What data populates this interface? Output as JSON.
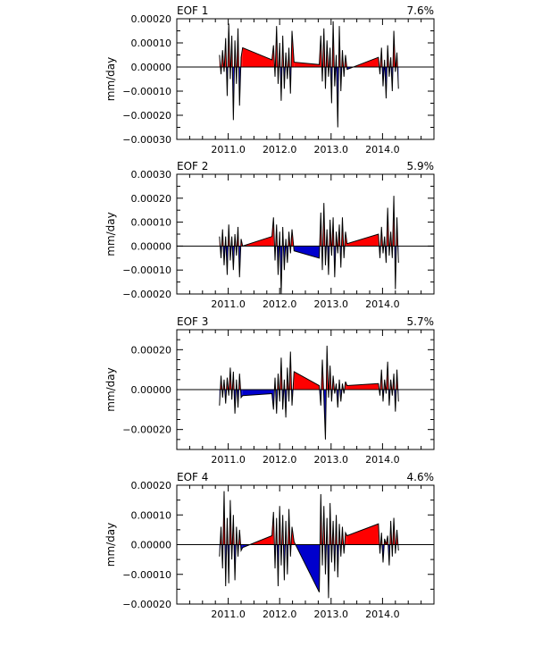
{
  "colors": {
    "positive": "#ff0000",
    "negative": "#0000cc",
    "line": "#000000"
  },
  "chart_data": [
    {
      "type": "area",
      "title_left": "EOF 1",
      "title_right": "7.6%",
      "ylabel": "mm/day",
      "xlim": [
        2010.0,
        2015.0
      ],
      "ylim": [
        -0.0003,
        0.0002
      ],
      "yticks": [
        -0.0003,
        -0.0002,
        -0.0001,
        0.0,
        0.0001,
        0.0002
      ],
      "ytick_labels": [
        "−0.00030",
        "−0.00020",
        "−0.00010",
        "0.00000",
        "0.00010",
        "0.00020"
      ],
      "xticks": [
        2011.0,
        2012.0,
        2013.0,
        2014.0
      ],
      "xtick_labels": [
        "2011.0",
        "2012.0",
        "2013.0",
        "2014.0"
      ],
      "x": [
        2010.83,
        2010.86,
        2010.89,
        2010.92,
        2010.95,
        2010.98,
        2011.01,
        2011.04,
        2011.07,
        2011.1,
        2011.13,
        2011.16,
        2011.19,
        2011.22,
        2011.25,
        2011.28,
        2011.85,
        2011.88,
        2011.91,
        2011.94,
        2011.97,
        2012.0,
        2012.03,
        2012.06,
        2012.09,
        2012.12,
        2012.15,
        2012.18,
        2012.21,
        2012.24,
        2012.28,
        2012.77,
        2012.8,
        2012.83,
        2012.86,
        2012.89,
        2012.92,
        2012.95,
        2012.98,
        2013.01,
        2013.04,
        2013.07,
        2013.1,
        2013.13,
        2013.16,
        2013.19,
        2013.22,
        2013.25,
        2013.28,
        2013.31,
        2013.92,
        2013.95,
        2013.98,
        2014.01,
        2014.04,
        2014.07,
        2014.1,
        2014.13,
        2014.16,
        2014.19,
        2014.22,
        2014.25,
        2014.28,
        2014.31
      ],
      "y": [
        5e-05,
        -3e-05,
        7e-05,
        -2e-05,
        0.00012,
        -0.00012,
        0.00018,
        -5e-05,
        0.00013,
        -0.00022,
        0.00011,
        -7e-05,
        0.00016,
        -0.00016,
        4e-05,
        8e-05,
        3e-05,
        9e-05,
        -4e-05,
        0.00017,
        -7e-05,
        0.0001,
        -0.00014,
        0.00013,
        -9e-05,
        6e-05,
        -5e-05,
        8e-05,
        -0.00011,
        0.00015,
        2e-05,
        1e-05,
        0.00013,
        -6e-05,
        0.00016,
        -9e-05,
        0.00011,
        -4e-05,
        8e-05,
        -0.00015,
        0.00019,
        -8e-05,
        5e-05,
        -0.00025,
        0.00017,
        -0.0001,
        7e-05,
        -4e-05,
        5e-05,
        -1e-05,
        4e-05,
        -3e-05,
        8e-05,
        -8e-05,
        3e-05,
        -0.00013,
        9e-05,
        -4e-05,
        4e-05,
        -0.0001,
        0.00015,
        -2e-05,
        6e-05,
        -9e-05
      ]
    },
    {
      "type": "area",
      "title_left": "EOF 2",
      "title_right": "5.9%",
      "ylabel": "mm/day",
      "xlim": [
        2010.0,
        2015.0
      ],
      "ylim": [
        -0.0002,
        0.0003
      ],
      "yticks": [
        -0.0002,
        -0.0001,
        0.0,
        0.0001,
        0.0002,
        0.0003
      ],
      "ytick_labels": [
        "−0.00020",
        "−0.00010",
        "0.00000",
        "0.00010",
        "0.00020",
        "0.00030"
      ],
      "xticks": [
        2011.0,
        2012.0,
        2013.0,
        2014.0
      ],
      "xtick_labels": [
        "2011.0",
        "2012.0",
        "2013.0",
        "2014.0"
      ],
      "x": [
        2010.83,
        2010.86,
        2010.89,
        2010.92,
        2010.95,
        2010.98,
        2011.01,
        2011.04,
        2011.07,
        2011.1,
        2011.13,
        2011.16,
        2011.19,
        2011.22,
        2011.25,
        2011.28,
        2011.85,
        2011.88,
        2011.91,
        2011.94,
        2011.97,
        2012.0,
        2012.03,
        2012.06,
        2012.09,
        2012.12,
        2012.15,
        2012.18,
        2012.21,
        2012.24,
        2012.28,
        2012.77,
        2012.8,
        2012.83,
        2012.86,
        2012.89,
        2012.92,
        2012.95,
        2012.98,
        2013.01,
        2013.04,
        2013.07,
        2013.1,
        2013.13,
        2013.16,
        2013.19,
        2013.22,
        2013.25,
        2013.28,
        2013.31,
        2013.92,
        2013.95,
        2013.98,
        2014.01,
        2014.04,
        2014.07,
        2014.1,
        2014.13,
        2014.16,
        2014.19,
        2014.22,
        2014.25,
        2014.28,
        2014.31
      ],
      "y": [
        4e-05,
        -5e-05,
        7e-05,
        -8e-05,
        4e-05,
        -0.00012,
        9e-05,
        -6e-05,
        4e-05,
        -0.0001,
        5e-05,
        -4e-05,
        8e-05,
        -0.00013,
        3e-05,
        0.0,
        4e-05,
        0.00012,
        -6e-05,
        9e-05,
        -0.00012,
        6e-05,
        -0.0002,
        8e-05,
        -0.0001,
        3e-05,
        -7e-05,
        6e-05,
        -3e-05,
        7e-05,
        -2e-05,
        -5e-05,
        0.00014,
        -0.0001,
        0.00018,
        -8e-05,
        7e-05,
        -0.00012,
        0.00011,
        -4e-05,
        0.00012,
        -0.00013,
        6e-05,
        -3e-05,
        9e-05,
        -9e-05,
        0.00012,
        -5e-05,
        6e-05,
        1e-05,
        5e-05,
        -5e-05,
        8e-05,
        -3e-05,
        4e-05,
        -7e-05,
        0.00016,
        -4e-05,
        6e-05,
        -5e-05,
        0.00021,
        -0.00018,
        0.00012,
        -7e-05
      ]
    },
    {
      "type": "area",
      "title_left": "EOF 3",
      "title_right": "5.7%",
      "ylabel": "mm/day",
      "xlim": [
        2010.0,
        2015.0
      ],
      "ylim": [
        -0.0003,
        0.0003
      ],
      "yticks": [
        -0.0002,
        0.0,
        0.0002
      ],
      "ytick_labels": [
        "−0.00020",
        "0.00000",
        "0.00020"
      ],
      "xticks": [
        2011.0,
        2012.0,
        2013.0,
        2014.0
      ],
      "xtick_labels": [
        "2011.0",
        "2012.0",
        "2013.0",
        "2014.0"
      ],
      "x": [
        2010.83,
        2010.86,
        2010.89,
        2010.92,
        2010.95,
        2010.98,
        2011.01,
        2011.04,
        2011.07,
        2011.1,
        2011.13,
        2011.16,
        2011.19,
        2011.22,
        2011.25,
        2011.28,
        2011.85,
        2011.88,
        2011.91,
        2011.94,
        2011.97,
        2012.0,
        2012.03,
        2012.06,
        2012.09,
        2012.12,
        2012.15,
        2012.18,
        2012.21,
        2012.24,
        2012.28,
        2012.77,
        2012.8,
        2012.83,
        2012.86,
        2012.89,
        2012.92,
        2012.95,
        2012.98,
        2013.01,
        2013.04,
        2013.07,
        2013.1,
        2013.13,
        2013.16,
        2013.19,
        2013.22,
        2013.25,
        2013.28,
        2013.31,
        2013.92,
        2013.95,
        2013.98,
        2014.01,
        2014.04,
        2014.07,
        2014.1,
        2014.13,
        2014.16,
        2014.19,
        2014.22,
        2014.25,
        2014.28,
        2014.31
      ],
      "y": [
        -8e-05,
        7e-05,
        -4e-05,
        5e-05,
        -7e-05,
        6e-05,
        -3e-05,
        0.00011,
        -5e-05,
        9e-05,
        -0.00012,
        5e-05,
        -9e-05,
        8e-05,
        -4e-05,
        -3e-05,
        -2e-05,
        -0.0001,
        6e-05,
        -0.00012,
        8e-05,
        -6e-05,
        0.00016,
        -0.0001,
        5e-05,
        -0.00014,
        0.00011,
        -6e-05,
        0.00019,
        -8e-05,
        9e-05,
        2e-05,
        -8e-05,
        0.00015,
        -4e-05,
        -0.00025,
        0.00022,
        -4e-05,
        0.00012,
        -6e-05,
        7e-05,
        -2e-05,
        3e-05,
        -9e-05,
        5e-05,
        -6e-05,
        3e-05,
        -2e-05,
        4e-05,
        2e-05,
        3e-05,
        -3e-05,
        0.0001,
        -6e-05,
        5e-05,
        -2e-05,
        0.00014,
        -8e-05,
        5e-05,
        -3e-05,
        8e-05,
        -0.00011,
        0.0001,
        -6e-05
      ]
    },
    {
      "type": "area",
      "title_left": "EOF 4",
      "title_right": "4.6%",
      "ylabel": "mm/day",
      "xlim": [
        2010.0,
        2015.0
      ],
      "ylim": [
        -0.0002,
        0.0002
      ],
      "yticks": [
        -0.0002,
        -0.0001,
        0.0,
        0.0001,
        0.0002
      ],
      "ytick_labels": [
        "−0.00020",
        "−0.00010",
        "0.00000",
        "0.00010",
        "0.00020"
      ],
      "xticks": [
        2011.0,
        2012.0,
        2013.0,
        2014.0
      ],
      "xtick_labels": [
        "2011.0",
        "2012.0",
        "2013.0",
        "2014.0"
      ],
      "x": [
        2010.83,
        2010.86,
        2010.89,
        2010.92,
        2010.95,
        2010.98,
        2011.01,
        2011.04,
        2011.07,
        2011.1,
        2011.13,
        2011.16,
        2011.19,
        2011.22,
        2011.25,
        2011.28,
        2011.85,
        2011.88,
        2011.91,
        2011.94,
        2011.97,
        2012.0,
        2012.03,
        2012.06,
        2012.09,
        2012.12,
        2012.15,
        2012.18,
        2012.21,
        2012.24,
        2012.28,
        2012.77,
        2012.8,
        2012.83,
        2012.86,
        2012.89,
        2012.92,
        2012.95,
        2012.98,
        2013.01,
        2013.04,
        2013.07,
        2013.1,
        2013.13,
        2013.16,
        2013.19,
        2013.22,
        2013.25,
        2013.28,
        2013.31,
        2013.92,
        2013.95,
        2013.98,
        2014.01,
        2014.04,
        2014.07,
        2014.1,
        2014.13,
        2014.16,
        2014.19,
        2014.22,
        2014.25,
        2014.28,
        2014.31
      ],
      "y": [
        -4e-05,
        6e-05,
        -8e-05,
        0.00018,
        -0.00014,
        9e-05,
        -0.00013,
        0.00015,
        -5e-05,
        0.0001,
        -0.00012,
        6e-05,
        -4e-05,
        5e-05,
        -2e-05,
        -1e-05,
        3e-05,
        0.00011,
        -8e-05,
        9e-05,
        -0.00014,
        0.00013,
        -7e-05,
        0.0001,
        -0.00012,
        8e-05,
        -0.0001,
        0.00012,
        -4e-05,
        6e-05,
        1e-05,
        -0.00016,
        0.00017,
        -7e-05,
        0.00013,
        -0.0001,
        9e-05,
        -0.00018,
        0.00014,
        -6e-05,
        8e-05,
        -9e-05,
        0.0001,
        -0.00011,
        7e-05,
        -4e-05,
        6e-05,
        -3e-05,
        4e-05,
        3e-05,
        7e-05,
        -3e-05,
        4e-05,
        -6e-05,
        2e-05,
        0.0,
        3e-05,
        -7e-05,
        8e-05,
        -4e-05,
        9e-05,
        -3e-05,
        5e-05,
        -2e-05
      ]
    }
  ]
}
